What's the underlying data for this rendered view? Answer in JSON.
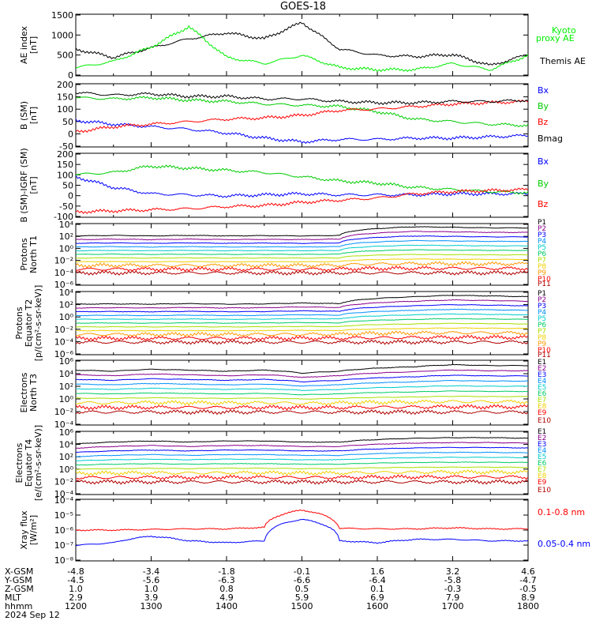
{
  "title": "GOES-18",
  "x_tick_labels": [
    "1200",
    "1300",
    "1400",
    "1500",
    "1600",
    "1700",
    "1800"
  ],
  "ephemeris": {
    "rows": [
      {
        "label": "X-GSM",
        "values": [
          "-4.8",
          "-3.4",
          "-1.8",
          "-0.1",
          "1.6",
          "3.2",
          "4.6"
        ]
      },
      {
        "label": "Y-GSM",
        "values": [
          "-4.5",
          "-5.6",
          "-6.3",
          "-6.6",
          "-6.4",
          "-5.8",
          "-4.7"
        ]
      },
      {
        "label": "Z-GSM",
        "values": [
          "1.0",
          "1.0",
          "0.8",
          "0.5",
          "0.1",
          "-0.3",
          "-0.5"
        ]
      },
      {
        "label": "MLT",
        "values": [
          "2.9",
          "3.9",
          "4.9",
          "5.9",
          "6.9",
          "7.9",
          "8.9"
        ]
      },
      {
        "label": "hhmm",
        "values": [
          "1200",
          "1300",
          "1400",
          "1500",
          "1600",
          "1700",
          "1800"
        ]
      }
    ],
    "date": "2024 Sep 12"
  },
  "panels": [
    {
      "id": "ae",
      "ylabel": [
        "AE index",
        "[nT]"
      ],
      "tick_labels": [
        "1500",
        "1000",
        "500",
        "0"
      ],
      "legend": [
        {
          "text": "Kyoto",
          "color": "#00ee00"
        },
        {
          "text": "proxy AE",
          "color": "#00ee00"
        },
        {
          "text": "Themis AE",
          "color": "#000000"
        }
      ]
    },
    {
      "id": "bsm",
      "ylabel": [
        "B (SM)",
        "[nT]"
      ],
      "tick_labels": [
        "200",
        "150",
        "100",
        "50",
        "0",
        "-50"
      ],
      "legend": [
        {
          "text": "Bx",
          "color": "#0000ff"
        },
        {
          "text": "By",
          "color": "#00cc00"
        },
        {
          "text": "Bz",
          "color": "#ff0000"
        },
        {
          "text": "Bmag",
          "color": "#000000"
        }
      ]
    },
    {
      "id": "bigrf",
      "ylabel": [
        "B (SM)-IGRF (SM)",
        "[nT]"
      ],
      "tick_labels": [
        "200",
        "150",
        "100",
        "50",
        "0",
        "-50",
        "-100"
      ],
      "legend": [
        {
          "text": "Bx",
          "color": "#0000ff"
        },
        {
          "text": "By",
          "color": "#00cc00"
        },
        {
          "text": "Bz",
          "color": "#ff0000"
        }
      ]
    },
    {
      "id": "pnorth",
      "ylabel": [
        "Protons",
        "North T1"
      ],
      "tick_labels": [
        "10⁴",
        "10²",
        "10⁰",
        "10⁻²",
        "10⁻⁴",
        "10⁻⁶"
      ],
      "legend": [
        {
          "text": "P1"
        },
        {
          "text": "P2"
        },
        {
          "text": "P3"
        },
        {
          "text": "P4"
        },
        {
          "text": "P5"
        },
        {
          "text": "P6"
        },
        {
          "text": "P7"
        },
        {
          "text": "P8"
        },
        {
          "text": "P9"
        },
        {
          "text": "P10"
        },
        {
          "text": "P11"
        }
      ]
    },
    {
      "id": "peq",
      "ylabel": [
        "Protons",
        "Equator T2",
        "[p/(cm²-s-sr-keV)]"
      ],
      "tick_labels": [
        "10⁴",
        "10²",
        "10⁰",
        "10⁻²",
        "10⁻⁴",
        "10⁻⁶"
      ],
      "legend": [
        {
          "text": "P1"
        },
        {
          "text": "P2"
        },
        {
          "text": "P3"
        },
        {
          "text": "P4"
        },
        {
          "text": "P5"
        },
        {
          "text": "P6"
        },
        {
          "text": "P7"
        },
        {
          "text": "P8"
        },
        {
          "text": "P9"
        },
        {
          "text": "P10"
        },
        {
          "text": "P11"
        }
      ]
    },
    {
      "id": "enorth",
      "ylabel": [
        "Electrons",
        "North T3"
      ],
      "tick_labels": [
        "10⁶",
        "10⁴",
        "10²",
        "10⁰",
        "10⁻²",
        "10⁻⁴"
      ],
      "legend": [
        {
          "text": "E1"
        },
        {
          "text": "E2"
        },
        {
          "text": "E3"
        },
        {
          "text": "E4"
        },
        {
          "text": "E5"
        },
        {
          "text": "E6"
        },
        {
          "text": "E7"
        },
        {
          "text": "E8"
        },
        {
          "text": "E9"
        },
        {
          "text": "E10"
        }
      ]
    },
    {
      "id": "eeq",
      "ylabel": [
        "Electrons",
        "Equator T4",
        "[e/(cm²-s-sr-keV)]"
      ],
      "tick_labels": [
        "10⁶",
        "10⁴",
        "10²",
        "10⁰",
        "10⁻²",
        "10⁻⁴"
      ],
      "legend": [
        {
          "text": "E1"
        },
        {
          "text": "E2"
        },
        {
          "text": "E3"
        },
        {
          "text": "E4"
        },
        {
          "text": "E5"
        },
        {
          "text": "E6"
        },
        {
          "text": "E7"
        },
        {
          "text": "E8"
        },
        {
          "text": "E9"
        },
        {
          "text": "E10"
        }
      ]
    },
    {
      "id": "xray",
      "ylabel": [
        "Xray flux",
        "[W/m²]"
      ],
      "tick_labels": [
        "10⁻⁴",
        "10⁻⁵",
        "10⁻⁶",
        "10⁻⁷",
        "10⁻⁸"
      ],
      "legend": [
        {
          "text": "0.1-0.8 nm",
          "color": "#ff0000"
        },
        {
          "text": "0.05-0.4 nm",
          "color": "#0000ff"
        }
      ]
    }
  ],
  "band_colors_p": [
    "#000000",
    "#8b008b",
    "#0000ff",
    "#0090ff",
    "#00cccc",
    "#00cc66",
    "#a8e000",
    "#f0d000",
    "#ff9900",
    "#ff0000",
    "#b00000"
  ],
  "band_colors_e": [
    "#000000",
    "#8b008b",
    "#0000ff",
    "#0090ff",
    "#00cccc",
    "#00cc66",
    "#a8e000",
    "#f0d000",
    "#ff0000",
    "#b00000"
  ],
  "chart_data": {
    "type": "line",
    "title": "GOES-18",
    "x": [
      "1200",
      "1230",
      "1300",
      "1330",
      "1400",
      "1430",
      "1500",
      "1530",
      "1600",
      "1630",
      "1700",
      "1730",
      "1800"
    ],
    "xlim": [
      "1200",
      "1800"
    ],
    "panels": [
      {
        "id": "ae",
        "ylim": [
          0,
          1500
        ],
        "series": [
          {
            "name": "Themis AE",
            "values": [
              650,
              450,
              680,
              900,
              1050,
              900,
              1300,
              650,
              500,
              470,
              520,
              250,
              520
            ]
          },
          {
            "name": "Kyoto proxy AE",
            "values": [
              200,
              350,
              700,
              1200,
              450,
              300,
              500,
              200,
              150,
              150,
              300,
              150,
              500
            ]
          }
        ]
      },
      {
        "id": "bsm",
        "ylim": [
          -50,
          200
        ],
        "series": [
          {
            "name": "Bx",
            "values": [
              55,
              40,
              30,
              20,
              5,
              -15,
              -30,
              -20,
              -20,
              -15,
              -15,
              -10,
              -5
            ]
          },
          {
            "name": "By",
            "values": [
              145,
              140,
              145,
              135,
              130,
              120,
              115,
              110,
              90,
              60,
              50,
              40,
              35
            ]
          },
          {
            "name": "Bz",
            "values": [
              10,
              30,
              40,
              50,
              60,
              65,
              75,
              95,
              100,
              110,
              120,
              125,
              130
            ]
          },
          {
            "name": "Bmag",
            "values": [
              165,
              155,
              160,
              150,
              150,
              140,
              140,
              130,
              125,
              125,
              130,
              130,
              135
            ]
          }
        ]
      },
      {
        "id": "bigrf",
        "ylim": [
          -100,
          200
        ],
        "series": [
          {
            "name": "Bx",
            "values": [
              90,
              40,
              10,
              5,
              0,
              5,
              10,
              5,
              5,
              5,
              10,
              10,
              10
            ]
          },
          {
            "name": "By",
            "values": [
              100,
              110,
              140,
              130,
              120,
              110,
              90,
              70,
              60,
              40,
              30,
              20,
              15
            ]
          },
          {
            "name": "Bz",
            "values": [
              -75,
              -70,
              -65,
              -60,
              -50,
              -45,
              -30,
              -20,
              -10,
              10,
              20,
              25,
              30
            ]
          }
        ]
      },
      {
        "id": "pnorth",
        "scale": "log",
        "ylim": [
          "1e-6",
          "1e4"
        ],
        "series": [
          {
            "name": "P1",
            "values": [
              100,
              120,
              100,
              120,
              100,
              110,
              100,
              120,
              1500,
              3000,
              2500,
              2000,
              2000
            ]
          },
          {
            "name": "P11",
            "values": [
              "1e-4",
              "1e-4",
              "1e-4",
              "1e-4",
              "1e-4",
              "1e-4",
              "1e-4",
              "1e-4",
              "1e-4",
              "1e-4",
              "1e-4",
              "1e-4",
              "1e-4"
            ]
          }
        ]
      },
      {
        "id": "peq",
        "scale": "log",
        "ylim": [
          "1e-6",
          "1e4"
        ],
        "series": [
          {
            "name": "P1",
            "values": [
              100,
              110,
              100,
              120,
              100,
              110,
              150,
              120,
              800,
              1500,
              2500,
              2000,
              1500
            ]
          },
          {
            "name": "P11",
            "values": [
              "1e-4",
              "1e-4",
              "1e-4",
              "1e-4",
              "1e-4",
              "1e-4",
              "1e-4",
              "1e-4",
              "1e-4",
              "1e-4",
              "1e-4",
              "1e-4",
              "1e-4"
            ]
          }
        ]
      },
      {
        "id": "enorth",
        "scale": "log",
        "ylim": [
          "1e-4",
          "1e6"
        ],
        "series": [
          {
            "name": "E1",
            "values": [
              30000,
              20000,
              40000,
              30000,
              20000,
              30000,
              10000,
              20000,
              60000,
              100000,
              200000,
              150000,
              150000
            ]
          },
          {
            "name": "E10",
            "values": [
              "1e-2",
              "1e-2",
              "1e-2",
              "1e-2",
              "1e-2",
              "1e-2",
              "1e-2",
              "1e-2",
              "1e-2",
              "1e-2",
              "1e-2",
              "1e-2",
              "1e-2"
            ]
          }
        ]
      },
      {
        "id": "eeq",
        "scale": "log",
        "ylim": [
          "1e-4",
          "1e6"
        ],
        "series": [
          {
            "name": "E1",
            "values": [
              10000,
              20000,
              30000,
              20000,
              30000,
              30000,
              20000,
              20000,
              50000,
              80000,
              100000,
              100000,
              80000
            ]
          },
          {
            "name": "E10",
            "values": [
              "1e-2",
              "1e-2",
              "1e-2",
              "1e-2",
              "1e-2",
              "1e-2",
              "1e-2",
              "1e-2",
              "1e-2",
              "1e-2",
              "1e-2",
              "1e-2",
              "1e-2"
            ]
          }
        ]
      },
      {
        "id": "xray",
        "scale": "log",
        "ylim": [
          "1e-8",
          "1e-4"
        ],
        "series": [
          {
            "name": "0.1-0.8 nm",
            "values": [
              "1e-6",
              "1e-6",
              "1.1e-6",
              "1.2e-6",
              "1.2e-6",
              "1.5e-6",
              "2e-5",
              "1.3e-6",
              "1.2e-6",
              "1.2e-6",
              "1.4e-6",
              "1.2e-6",
              "1.2e-6"
            ]
          },
          {
            "name": "0.05-0.4 nm",
            "values": [
              "1e-7",
              "1.5e-7",
              "4e-7",
              "2e-7",
              "1.5e-7",
              "2e-7",
              "5e-6",
              "2e-7",
              "1.5e-7",
              "2.5e-7",
              "2.5e-7",
              "2e-7",
              "2e-7"
            ]
          }
        ]
      }
    ]
  }
}
